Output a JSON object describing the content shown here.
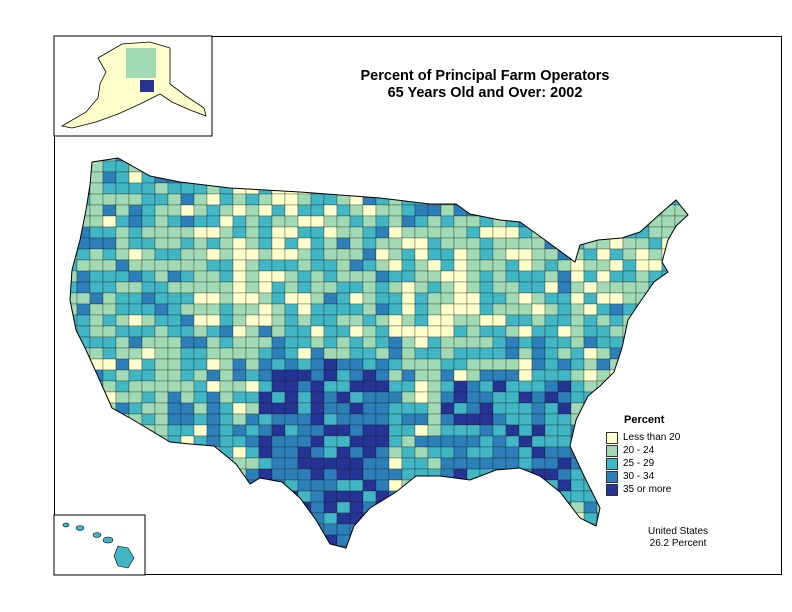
{
  "title": {
    "line1": "Percent of Principal Farm Operators",
    "line2": "65 Years Old and Over:  2002"
  },
  "legend": {
    "title": "Percent",
    "classes": [
      {
        "label": "Less than 20",
        "color": "#FFFFCC"
      },
      {
        "label": "20 - 24",
        "color": "#A1DAB4"
      },
      {
        "label": "25 - 29",
        "color": "#41B6C4"
      },
      {
        "label": "30 - 34",
        "color": "#2C7FB8"
      },
      {
        "label": "35 or more",
        "color": "#253494"
      }
    ]
  },
  "national_note": {
    "line1": "United States",
    "line2": "26.2 Percent"
  },
  "map": {
    "outline_color": "#000000",
    "county_border_color": "#1a1a1a"
  }
}
